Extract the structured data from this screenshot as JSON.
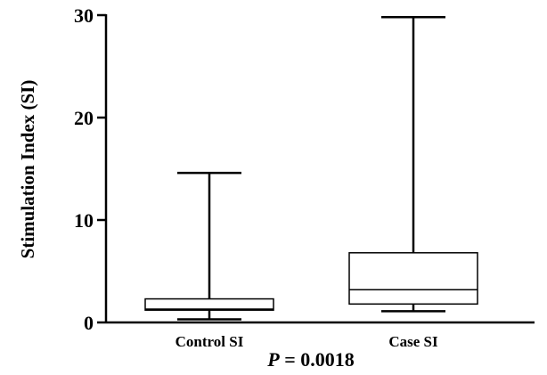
{
  "chart_data": {
    "type": "box",
    "ylabel": "Stimulation Index (SI)",
    "annotation_prefix": "P",
    "annotation_value": " = 0.0018",
    "ylim": [
      0,
      30
    ],
    "yticks": [
      0,
      10,
      20,
      30
    ],
    "categories": [
      "Control SI",
      "Case SI"
    ],
    "boxes": [
      {
        "name": "Control SI",
        "min": 0.3,
        "q1": 1.2,
        "median": 1.3,
        "q3": 2.3,
        "max": 14.6
      },
      {
        "name": "Case SI",
        "min": 1.1,
        "q1": 1.8,
        "median": 3.2,
        "q3": 6.8,
        "max": 29.8
      }
    ]
  }
}
